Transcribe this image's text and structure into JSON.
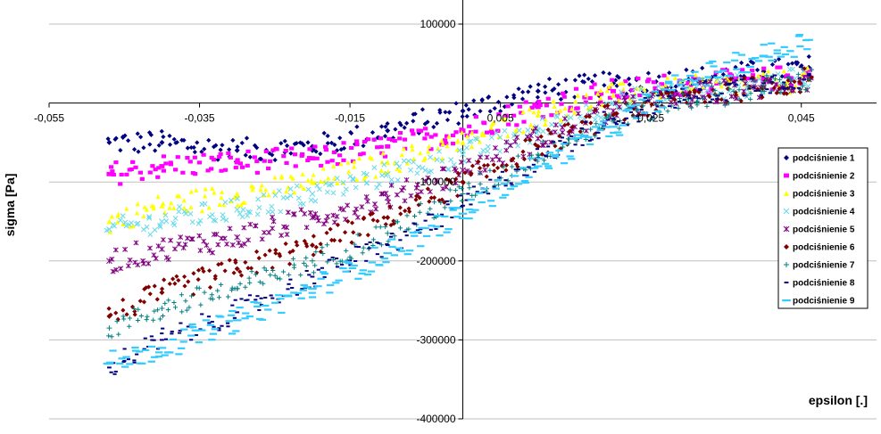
{
  "chart_data": {
    "type": "scatter",
    "title": "",
    "xlabel": "epsilon [.]",
    "ylabel": "sigma [Pa]",
    "xlim": [
      -0.055,
      0.055
    ],
    "ylim": [
      -400000,
      100000
    ],
    "x_ticks": [
      -0.055,
      -0.035,
      -0.015,
      0.005,
      0.025,
      0.045
    ],
    "x_tick_labels": [
      "-0,055",
      "-0,035",
      "-0,015",
      "0,005",
      "0,025",
      "0,045"
    ],
    "y_ticks": [
      100000,
      -100000,
      -200000,
      -300000,
      -400000
    ],
    "y_tick_labels": [
      "100000",
      "-100000",
      "-200000",
      "-300000",
      "-400000"
    ],
    "grid": true,
    "legend_position": "right",
    "series": [
      {
        "name": "podciśnienie 1",
        "color": "#000080",
        "marker": "diamond",
        "x": [
          -0.047,
          -0.04,
          -0.03,
          -0.02,
          -0.01,
          0.0,
          0.01,
          0.02,
          0.03,
          0.04,
          0.046
        ],
        "y": [
          -50000,
          -50000,
          -60000,
          -55000,
          -35000,
          -10000,
          15000,
          25000,
          30000,
          40000,
          45000
        ]
      },
      {
        "name": "podciśnienie 2",
        "color": "#ff00ff",
        "marker": "square",
        "x": [
          -0.047,
          -0.04,
          -0.03,
          -0.02,
          -0.01,
          0.0,
          0.01,
          0.02,
          0.03,
          0.04,
          0.046
        ],
        "y": [
          -90000,
          -80000,
          -75000,
          -70000,
          -55000,
          -35000,
          -5000,
          15000,
          25000,
          30000,
          35000
        ]
      },
      {
        "name": "podciśnienie 3",
        "color": "#ffff00",
        "marker": "triangle",
        "x": [
          -0.047,
          -0.04,
          -0.03,
          -0.02,
          -0.01,
          0.0,
          0.01,
          0.02,
          0.03,
          0.04,
          0.046
        ],
        "y": [
          -150000,
          -130000,
          -115000,
          -100000,
          -75000,
          -50000,
          -15000,
          10000,
          20000,
          25000,
          30000
        ]
      },
      {
        "name": "podciśnienie 4",
        "color": "#66d9e8",
        "marker": "x",
        "x": [
          -0.047,
          -0.04,
          -0.03,
          -0.02,
          -0.01,
          0.0,
          0.01,
          0.02,
          0.03,
          0.04,
          0.046
        ],
        "y": [
          -160000,
          -150000,
          -135000,
          -115000,
          -90000,
          -65000,
          -35000,
          0,
          15000,
          25000,
          30000
        ]
      },
      {
        "name": "podciśnienie 5",
        "color": "#800080",
        "marker": "star",
        "x": [
          -0.047,
          -0.04,
          -0.03,
          -0.02,
          -0.01,
          0.0,
          0.01,
          0.02,
          0.03,
          0.04,
          0.046
        ],
        "y": [
          -200000,
          -185000,
          -170000,
          -145000,
          -120000,
          -85000,
          -45000,
          -10000,
          10000,
          20000,
          30000
        ]
      },
      {
        "name": "podciśnienie 6",
        "color": "#800000",
        "marker": "circle",
        "x": [
          -0.047,
          -0.04,
          -0.03,
          -0.02,
          -0.01,
          0.0,
          0.01,
          0.02,
          0.03,
          0.04,
          0.046
        ],
        "y": [
          -270000,
          -240000,
          -210000,
          -180000,
          -145000,
          -100000,
          -55000,
          -15000,
          10000,
          20000,
          30000
        ]
      },
      {
        "name": "podciśnienie 7",
        "color": "#008080",
        "marker": "plus",
        "x": [
          -0.047,
          -0.04,
          -0.03,
          -0.02,
          -0.01,
          0.0,
          0.01,
          0.02,
          0.03,
          0.04,
          0.046
        ],
        "y": [
          -285000,
          -260000,
          -235000,
          -200000,
          -165000,
          -115000,
          -65000,
          -20000,
          5000,
          20000,
          30000
        ]
      },
      {
        "name": "podciśnienie 8",
        "color": "#000080",
        "marker": "dash",
        "x": [
          -0.047,
          -0.04,
          -0.03,
          -0.02,
          -0.01,
          0.0,
          0.01,
          0.02,
          0.03,
          0.04,
          0.046
        ],
        "y": [
          -335000,
          -300000,
          -265000,
          -220000,
          -180000,
          -130000,
          -70000,
          -20000,
          10000,
          25000,
          35000
        ]
      },
      {
        "name": "podciśnienie 9",
        "color": "#33ccff",
        "marker": "long-dash",
        "x": [
          -0.047,
          -0.04,
          -0.03,
          -0.02,
          -0.01,
          0.0,
          0.01,
          0.02,
          0.03,
          0.04,
          0.046
        ],
        "y": [
          -330000,
          -310000,
          -275000,
          -235000,
          -190000,
          -140000,
          -80000,
          -30000,
          30000,
          60000,
          80000
        ]
      }
    ]
  }
}
